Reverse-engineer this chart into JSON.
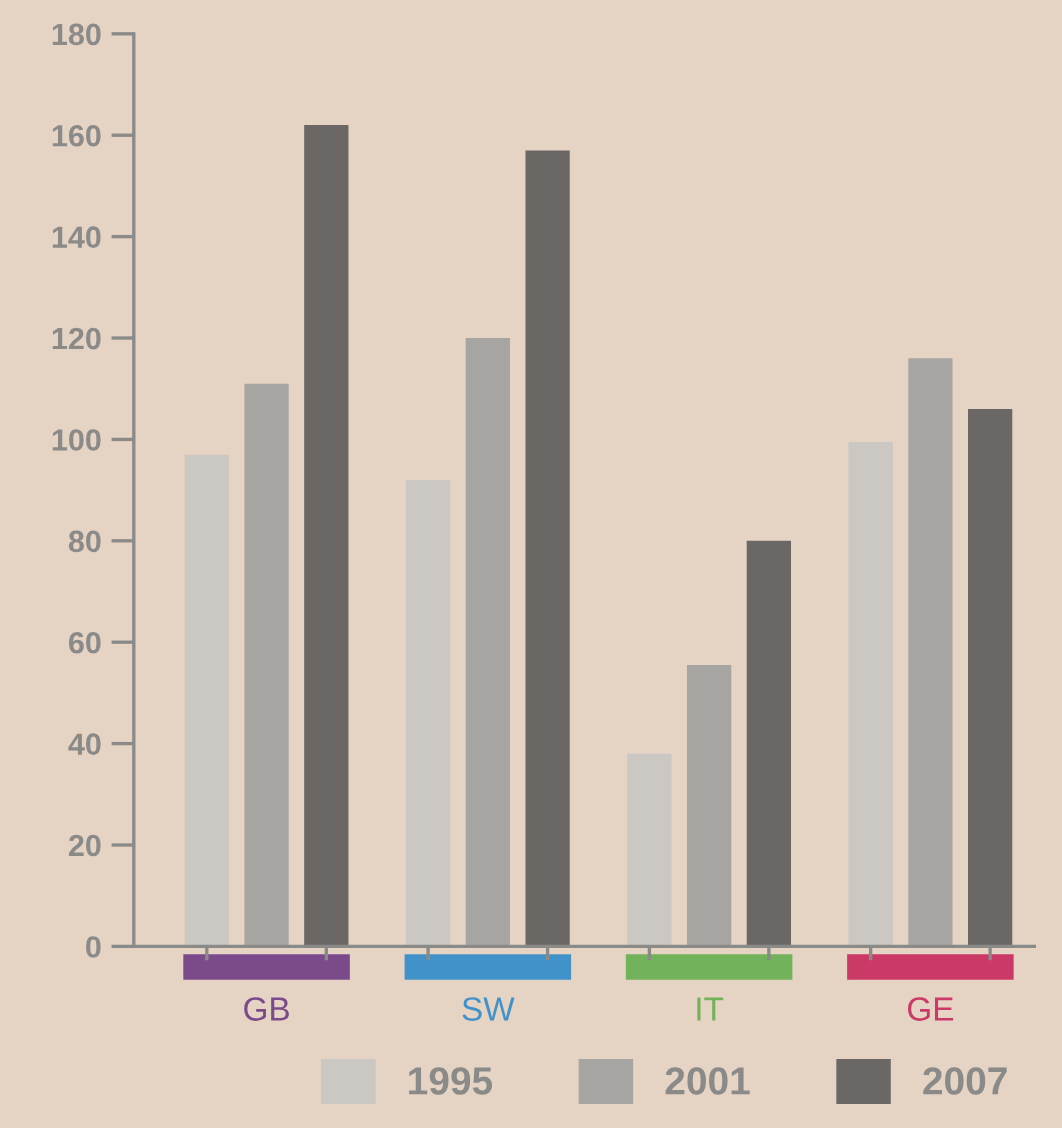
{
  "chart_data": {
    "type": "bar",
    "categories": [
      "GB",
      "SW",
      "IT",
      "GE"
    ],
    "series": [
      {
        "name": "1995",
        "color": "#cbc7c3",
        "values": [
          97,
          92,
          38,
          99.5
        ]
      },
      {
        "name": "2001",
        "color": "#a6a5a1",
        "values": [
          111,
          120,
          55.5,
          116
        ]
      },
      {
        "name": "2007",
        "color": "#6b6764",
        "values": [
          162,
          157,
          80,
          106
        ]
      }
    ],
    "ylim": [
      0,
      180
    ],
    "yticks": [
      0,
      20,
      40,
      60,
      80,
      100,
      120,
      140,
      160,
      180
    ],
    "grid": false,
    "legend": "bottom right"
  }
}
